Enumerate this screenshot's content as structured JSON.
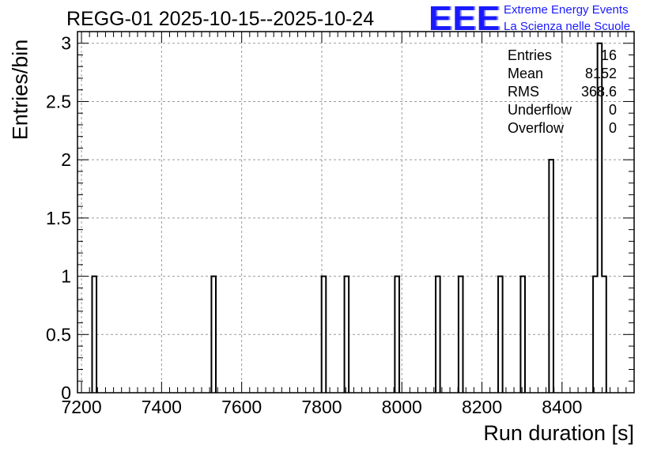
{
  "title": "REGG-01 2025-10-15--2025-10-24",
  "logo": {
    "mark": "EEE",
    "line1": "Extreme Energy Events",
    "line2": "La Scienza nelle Scuole",
    "color": "#1a1aff"
  },
  "stats": [
    {
      "label": "Entries",
      "value": "16"
    },
    {
      "label": "Mean",
      "value": "8152"
    },
    {
      "label": "RMS",
      "value": "368.6"
    },
    {
      "label": "Underflow",
      "value": "0"
    },
    {
      "label": "Overflow",
      "value": "0"
    }
  ],
  "chart_data": {
    "type": "bar",
    "title": "REGG-01 2025-10-15--2025-10-24",
    "xlabel": "Run duration [s]",
    "ylabel": "Entries/bin",
    "xlim": [
      7190,
      8580
    ],
    "ylim": [
      0,
      3.1
    ],
    "grid": true,
    "x_ticks": [
      7200,
      7400,
      7600,
      7800,
      8000,
      8200,
      8400
    ],
    "y_ticks": [
      0,
      0.5,
      1,
      1.5,
      2,
      2.5,
      3
    ],
    "y_tick_labels": [
      "0",
      "0.5",
      "1",
      "1.5",
      "2",
      "2.5",
      "3"
    ],
    "bin_width": 11,
    "bins": [
      {
        "x": 7232,
        "count": 1
      },
      {
        "x": 7530,
        "count": 1
      },
      {
        "x": 7805,
        "count": 1
      },
      {
        "x": 7862,
        "count": 1
      },
      {
        "x": 7988,
        "count": 1
      },
      {
        "x": 8090,
        "count": 1
      },
      {
        "x": 8147,
        "count": 1
      },
      {
        "x": 8246,
        "count": 1
      },
      {
        "x": 8302,
        "count": 1
      },
      {
        "x": 8373,
        "count": 2
      },
      {
        "x": 8483,
        "count": 1
      },
      {
        "x": 8494,
        "count": 3
      },
      {
        "x": 8505,
        "count": 1
      }
    ]
  }
}
